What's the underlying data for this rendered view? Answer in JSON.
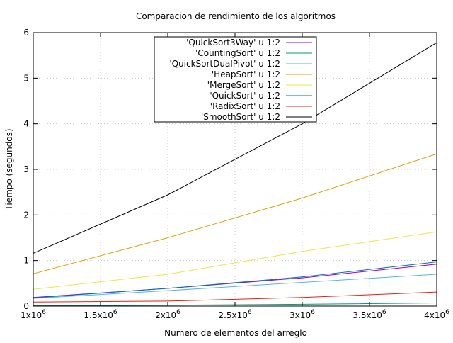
{
  "chart_data": {
    "type": "line",
    "title": "Comparacion de rendimiento de los algoritmos",
    "xlabel": "Numero de elementos del arreglo",
    "ylabel": "Tiempo (segundos)",
    "xlim": [
      1000000,
      4000000
    ],
    "ylim": [
      0,
      6
    ],
    "grid": true,
    "legend_position": "top-center",
    "x_ticks": [
      {
        "value": 1000000,
        "base": "1x10",
        "exp": "6"
      },
      {
        "value": 1500000,
        "base": "1.5x10",
        "exp": "6"
      },
      {
        "value": 2000000,
        "base": "2x10",
        "exp": "6"
      },
      {
        "value": 2500000,
        "base": "2.5x10",
        "exp": "6"
      },
      {
        "value": 3000000,
        "base": "3x10",
        "exp": "6"
      },
      {
        "value": 3500000,
        "base": "3.5x10",
        "exp": "6"
      },
      {
        "value": 4000000,
        "base": "4x10",
        "exp": "6"
      }
    ],
    "y_ticks": [
      {
        "value": 0,
        "label": "0"
      },
      {
        "value": 1,
        "label": "1"
      },
      {
        "value": 2,
        "label": "2"
      },
      {
        "value": 3,
        "label": "3"
      },
      {
        "value": 4,
        "label": "4"
      },
      {
        "value": 5,
        "label": "5"
      },
      {
        "value": 6,
        "label": "6"
      }
    ],
    "x": [
      1000000,
      2000000,
      3000000,
      4000000
    ],
    "series": [
      {
        "name": "'QuickSort3Way' u 1:2",
        "color": "#9400d3",
        "values": [
          0.19,
          0.39,
          0.62,
          0.92
        ]
      },
      {
        "name": "'CountingSort' u 1:2",
        "color": "#009e73",
        "values": [
          0.01,
          0.02,
          0.04,
          0.07
        ]
      },
      {
        "name": "'QuickSortDualPivot' u 1:2",
        "color": "#56b4e9",
        "values": [
          0.17,
          0.34,
          0.52,
          0.7
        ]
      },
      {
        "name": "'HeapSort' u 1:2",
        "color": "#e69f00",
        "values": [
          0.71,
          1.5,
          2.37,
          3.34
        ]
      },
      {
        "name": "'MergeSort' u 1:2",
        "color": "#f0e442",
        "values": [
          0.37,
          0.7,
          1.2,
          1.63
        ]
      },
      {
        "name": "'QuickSort' u 1:2",
        "color": "#0072b2",
        "values": [
          0.18,
          0.39,
          0.64,
          0.97
        ]
      },
      {
        "name": "'RadixSort' u 1:2",
        "color": "#e51e10",
        "values": [
          0.09,
          0.11,
          0.19,
          0.31
        ]
      },
      {
        "name": "'SmoothSort' u 1:2",
        "color": "#000000",
        "values": [
          1.16,
          2.44,
          4.0,
          5.78
        ]
      }
    ]
  }
}
